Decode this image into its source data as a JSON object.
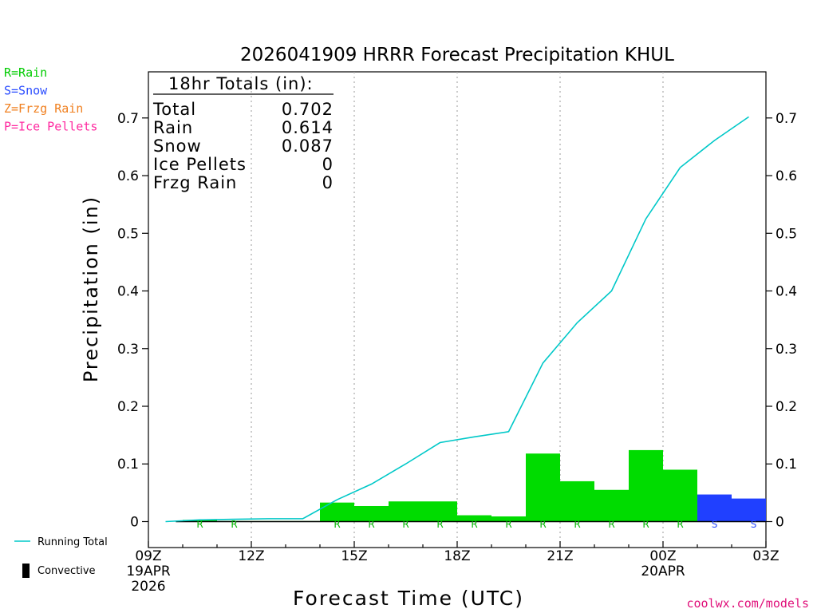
{
  "chart_data": {
    "type": "bar",
    "title": "2026041909 HRRR Forecast Precipitation KHUL",
    "xlabel": "Forecast Time (UTC)",
    "ylabel": "Precipitation (in)",
    "ylim": [
      -0.045,
      0.78
    ],
    "yticks": [
      0,
      0.1,
      0.2,
      0.3,
      0.4,
      0.5,
      0.6,
      0.7
    ],
    "ytick_labels": [
      "0",
      "0.1",
      "0.2",
      "0.3",
      "0.4",
      "0.5",
      "0.6",
      "0.7"
    ],
    "xlim_hours": [
      0,
      18
    ],
    "xticks": [
      {
        "hour": 0,
        "label": "09Z",
        "sub1": "19APR",
        "sub2": "2026"
      },
      {
        "hour": 3,
        "label": "12Z",
        "sub1": "",
        "sub2": ""
      },
      {
        "hour": 6,
        "label": "15Z",
        "sub1": "",
        "sub2": ""
      },
      {
        "hour": 9,
        "label": "18Z",
        "sub1": "",
        "sub2": ""
      },
      {
        "hour": 12,
        "label": "21Z",
        "sub1": "",
        "sub2": ""
      },
      {
        "hour": 15,
        "label": "00Z",
        "sub1": "20APR",
        "sub2": ""
      },
      {
        "hour": 18,
        "label": "03Z",
        "sub1": "",
        "sub2": ""
      }
    ],
    "hourly": [
      {
        "hour": 1,
        "value": 0.0,
        "type": "",
        "color": "#00dc00"
      },
      {
        "hour": 2,
        "value": 0.003,
        "type": "R",
        "color": "#00dc00"
      },
      {
        "hour": 3,
        "value": 0.001,
        "type": "R",
        "color": "#00dc00"
      },
      {
        "hour": 4,
        "value": 0.001,
        "type": "",
        "color": "#00dc00"
      },
      {
        "hour": 5,
        "value": 0.001,
        "type": "",
        "color": "#00dc00"
      },
      {
        "hour": 6,
        "value": 0.033,
        "type": "R",
        "color": "#00dc00"
      },
      {
        "hour": 7,
        "value": 0.027,
        "type": "R",
        "color": "#00dc00"
      },
      {
        "hour": 8,
        "value": 0.035,
        "type": "R",
        "color": "#00dc00"
      },
      {
        "hour": 9,
        "value": 0.035,
        "type": "R",
        "color": "#00dc00"
      },
      {
        "hour": 10,
        "value": 0.011,
        "type": "R",
        "color": "#00dc00"
      },
      {
        "hour": 11,
        "value": 0.009,
        "type": "R",
        "color": "#00dc00"
      },
      {
        "hour": 12,
        "value": 0.118,
        "type": "R",
        "color": "#00dc00"
      },
      {
        "hour": 13,
        "value": 0.07,
        "type": "R",
        "color": "#00dc00"
      },
      {
        "hour": 14,
        "value": 0.055,
        "type": "R",
        "color": "#00dc00"
      },
      {
        "hour": 15,
        "value": 0.124,
        "type": "R",
        "color": "#00dc00"
      },
      {
        "hour": 16,
        "value": 0.09,
        "type": "R",
        "color": "#00dc00"
      },
      {
        "hour": 17,
        "value": 0.047,
        "type": "S",
        "color": "#2040ff"
      },
      {
        "hour": 18,
        "value": 0.04,
        "type": "S",
        "color": "#2040ff"
      }
    ],
    "running_total": {
      "name": "Running Total",
      "color": "#00c8c8",
      "x": [
        1,
        2,
        3,
        4,
        5,
        6,
        7,
        8,
        9,
        10,
        11,
        12,
        13,
        14,
        15,
        16,
        17,
        18
      ],
      "y": [
        0.0,
        0.003,
        0.004,
        0.005,
        0.005,
        0.038,
        0.065,
        0.1,
        0.137,
        0.147,
        0.156,
        0.275,
        0.345,
        0.4,
        0.525,
        0.614,
        0.661,
        0.702
      ]
    },
    "totals_box": {
      "heading": "18hr Totals (in):",
      "rows": [
        {
          "label": "Total",
          "value": "0.702"
        },
        {
          "label": "Rain",
          "value": "0.614"
        },
        {
          "label": "Snow",
          "value": "0.087"
        },
        {
          "label": "Ice Pellets",
          "value": "0"
        },
        {
          "label": "Frzg Rain",
          "value": "0"
        }
      ]
    },
    "type_legend": [
      {
        "text": "R=Rain",
        "color": "#00cc00"
      },
      {
        "text": "S=Snow",
        "color": "#2a4cff"
      },
      {
        "text": "Z=Frzg Rain",
        "color": "#f08020"
      },
      {
        "text": "P=Ice Pellets",
        "color": "#ff2aa0"
      }
    ],
    "series_legend": [
      {
        "text": "Running Total",
        "kind": "line",
        "color": "#00c8c8"
      },
      {
        "text": "Convective",
        "kind": "bar",
        "color": "#000000"
      }
    ],
    "credit": "coolwx.com/models"
  }
}
